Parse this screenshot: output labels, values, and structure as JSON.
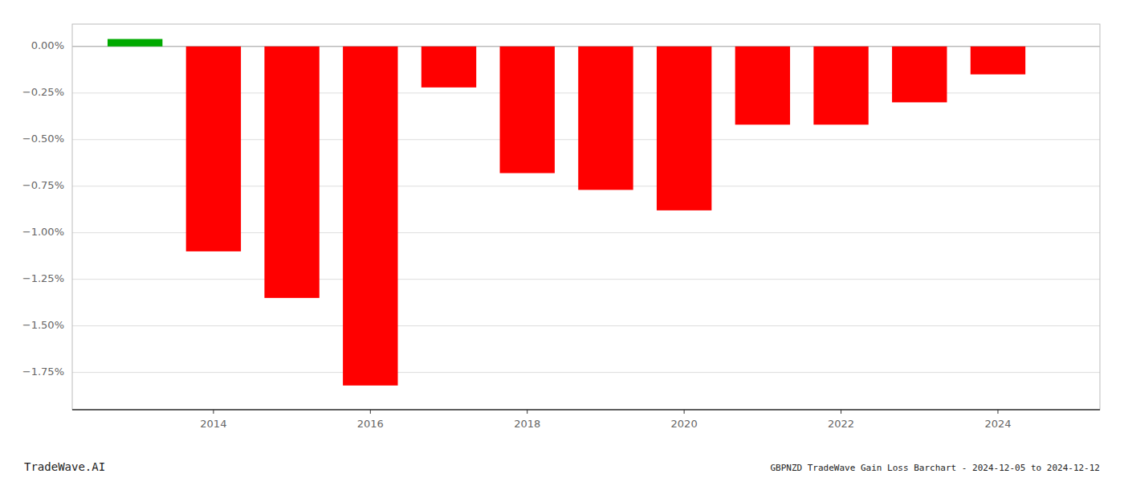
{
  "chart_data": {
    "type": "bar",
    "x": [
      2013,
      2014,
      2015,
      2016,
      2017,
      2018,
      2019,
      2020,
      2021,
      2022,
      2023,
      2024
    ],
    "values": [
      0.04,
      -1.1,
      -1.35,
      -1.82,
      -0.22,
      -0.68,
      -0.77,
      -0.88,
      -0.42,
      -0.42,
      -0.3,
      -0.15
    ],
    "colors": [
      "#00aa00",
      "#ff0000",
      "#ff0000",
      "#ff0000",
      "#ff0000",
      "#ff0000",
      "#ff0000",
      "#ff0000",
      "#ff0000",
      "#ff0000",
      "#ff0000",
      "#ff0000"
    ],
    "xlim": [
      2012.2,
      2025.3
    ],
    "xticks": [
      2014,
      2016,
      2018,
      2020,
      2022,
      2024
    ],
    "ylim": [
      -1.95,
      0.12
    ],
    "yticks": [
      {
        "value": 0.0,
        "label": "0.00%"
      },
      {
        "value": -0.25,
        "label": "−0.25%"
      },
      {
        "value": -0.5,
        "label": "−0.50%"
      },
      {
        "value": -0.75,
        "label": "−0.75%"
      },
      {
        "value": -1.0,
        "label": "−1.00%"
      },
      {
        "value": -1.25,
        "label": "−1.25%"
      },
      {
        "value": -1.5,
        "label": "−1.50%"
      },
      {
        "value": -1.75,
        "label": "−1.75%"
      }
    ],
    "grid": true,
    "annotations": [
      "TradeWave.AI",
      "GBPNZD TradeWave Gain Loss Barchart - 2024-12-05 to 2024-12-12"
    ]
  }
}
